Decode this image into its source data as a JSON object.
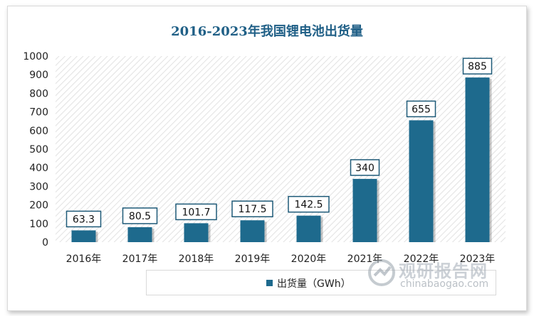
{
  "chart_data": {
    "type": "bar",
    "title": "2016-2023年我国锂电池出货量",
    "categories": [
      "2016年",
      "2017年",
      "2018年",
      "2019年",
      "2020年",
      "2021年",
      "2022年",
      "2023年"
    ],
    "series": [
      {
        "name": "出货量（GWh）",
        "values": [
          63.3,
          80.5,
          101.7,
          117.5,
          142.5,
          340,
          655,
          885
        ]
      }
    ],
    "data_labels": [
      "63.3",
      "80.5",
      "101.7",
      "117.5",
      "142.5",
      "340",
      "655",
      "885"
    ],
    "y_ticks": [
      "0",
      "100",
      "200",
      "300",
      "400",
      "500",
      "600",
      "700",
      "800",
      "900",
      "1000"
    ],
    "ylim": [
      0,
      1000
    ],
    "grid": false,
    "legend_position": "bottom",
    "colors": {
      "bar": "#1e6a8d",
      "title": "#1f5f86",
      "label_border": "#1e5a78"
    }
  },
  "watermark": {
    "cn": "观研报告网",
    "en": "chinabaogao.com"
  }
}
